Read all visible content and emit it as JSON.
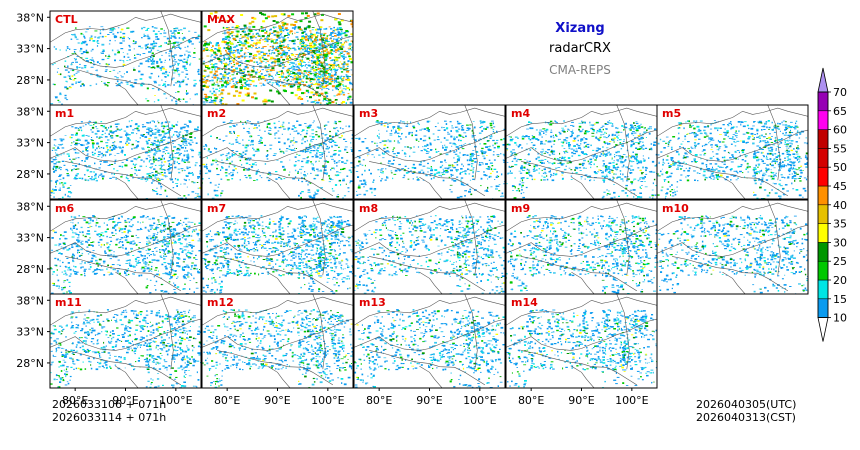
{
  "chart_data": {
    "type": "heatmap",
    "title": {
      "region": "Xizang",
      "product": "radarCRX",
      "model": "CMA-REPS"
    },
    "panels": [
      "CTL",
      "MAX",
      "m1",
      "m2",
      "m3",
      "m4",
      "m5",
      "m6",
      "m7",
      "m8",
      "m9",
      "m10",
      "m11",
      "m12",
      "m13",
      "m14"
    ],
    "panel_density": [
      0.28,
      1.0,
      0.45,
      0.3,
      0.3,
      0.45,
      0.45,
      0.45,
      0.55,
      0.35,
      0.4,
      0.35,
      0.4,
      0.4,
      0.35,
      0.4
    ],
    "x_ticks": [
      "80°E",
      "90°E",
      "100°E"
    ],
    "x_tick_values": [
      80,
      90,
      100
    ],
    "y_ticks": [
      "38°N",
      "33°N",
      "28°N"
    ],
    "y_tick_values": [
      38,
      33,
      28
    ],
    "xlim": [
      75,
      105
    ],
    "ylim": [
      24,
      39
    ],
    "colorbar": {
      "levels": [
        "10",
        "15",
        "20",
        "25",
        "30",
        "35",
        "40",
        "45",
        "50",
        "55",
        "60",
        "65",
        "70"
      ],
      "colors": [
        "#0a9bf0",
        "#00e5e5",
        "#00c800",
        "#009600",
        "#ffff00",
        "#e6c000",
        "#ff9000",
        "#ff0000",
        "#d40000",
        "#c00000",
        "#ff00f0",
        "#9600b4",
        "#ad90f0"
      ],
      "under_color": "#ffffff",
      "over_color": "#ad90f0"
    },
    "echo_colors": [
      "#0a9bf0",
      "#38c8f0",
      "#00e5e5",
      "#00c800",
      "#009600",
      "#ffff00",
      "#e6c000",
      "#ff9000"
    ]
  },
  "footer": {
    "init_utc_line": "2026033106  +  071h",
    "init_cst_line": "2026033114  +  071h",
    "valid_utc": "2026040305(UTC)",
    "valid_cst": "2026040313(CST)"
  }
}
